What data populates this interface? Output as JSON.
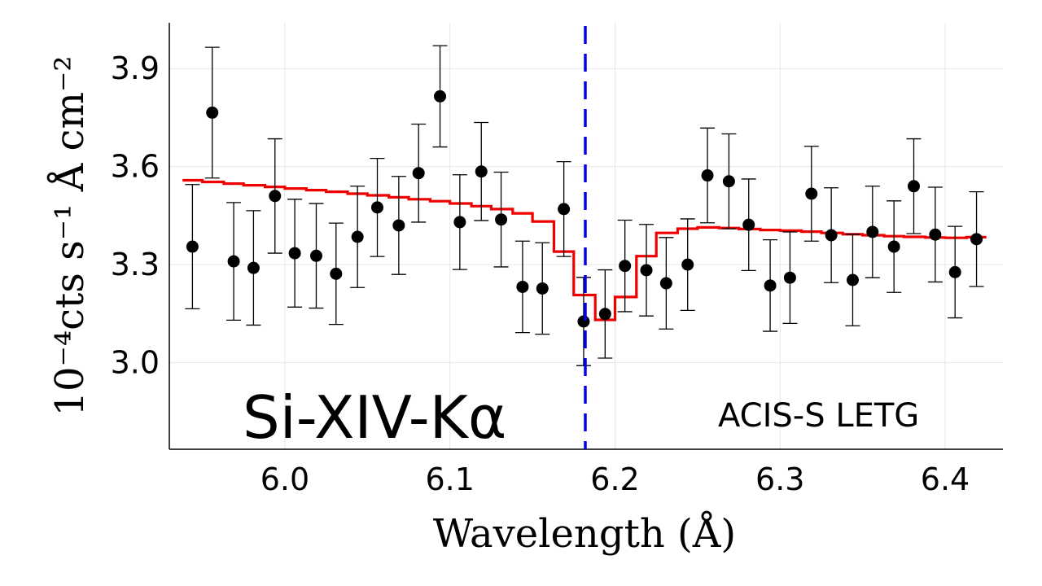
{
  "chart_data": {
    "type": "scatter",
    "xlabel": "Wavelength (Å)",
    "ylabel": "10⁻⁴cts s⁻¹ Å cm⁻²",
    "xlim": [
      5.93,
      6.435
    ],
    "ylim": [
      2.735,
      4.04
    ],
    "xticks": [
      6.0,
      6.1,
      6.2,
      6.3,
      6.4
    ],
    "xtick_labels": [
      "6.0",
      "6.1",
      "6.2",
      "6.3",
      "6.4"
    ],
    "yticks": [
      3.0,
      3.3,
      3.6,
      3.9
    ],
    "ytick_labels": [
      "3.0",
      "3.3",
      "3.6",
      "3.9"
    ],
    "grid": true,
    "annotations": {
      "line_label": "Si-XIV-Kα",
      "instrument": "ACIS-S LETG"
    },
    "reference_line": {
      "x": 6.182,
      "color": "#0000ee",
      "style": "dashed"
    },
    "data_points": {
      "color": "#000000",
      "x": [
        5.944,
        5.956,
        5.969,
        5.981,
        5.994,
        6.006,
        6.019,
        6.031,
        6.044,
        6.056,
        6.069,
        6.081,
        6.094,
        6.106,
        6.119,
        6.131,
        6.144,
        6.156,
        6.169,
        6.181,
        6.194,
        6.206,
        6.219,
        6.231,
        6.244,
        6.256,
        6.269,
        6.281,
        6.294,
        6.306,
        6.319,
        6.331,
        6.344,
        6.356,
        6.369,
        6.381,
        6.394,
        6.406,
        6.419
      ],
      "y": [
        3.355,
        3.765,
        3.31,
        3.29,
        3.51,
        3.335,
        3.327,
        3.272,
        3.385,
        3.475,
        3.42,
        3.58,
        3.815,
        3.43,
        3.585,
        3.438,
        3.232,
        3.227,
        3.47,
        3.126,
        3.149,
        3.296,
        3.283,
        3.243,
        3.3,
        3.573,
        3.555,
        3.422,
        3.236,
        3.26,
        3.517,
        3.39,
        3.253,
        3.4,
        3.355,
        3.54,
        3.392,
        3.277,
        3.378
      ],
      "err": [
        0.19,
        0.2,
        0.18,
        0.175,
        0.175,
        0.165,
        0.16,
        0.155,
        0.155,
        0.15,
        0.15,
        0.15,
        0.155,
        0.145,
        0.15,
        0.145,
        0.14,
        0.14,
        0.145,
        0.135,
        0.135,
        0.14,
        0.14,
        0.14,
        0.14,
        0.145,
        0.145,
        0.14,
        0.14,
        0.14,
        0.145,
        0.145,
        0.14,
        0.14,
        0.14,
        0.145,
        0.145,
        0.14,
        0.145
      ]
    },
    "model": {
      "color": "#ee0000",
      "type": "step",
      "edges": [
        5.938,
        5.95,
        5.963,
        5.975,
        5.988,
        6.0,
        6.013,
        6.025,
        6.038,
        6.05,
        6.063,
        6.075,
        6.088,
        6.1,
        6.113,
        6.125,
        6.138,
        6.15,
        6.163,
        6.175,
        6.188,
        6.2,
        6.213,
        6.225,
        6.238,
        6.25,
        6.263,
        6.275,
        6.288,
        6.3,
        6.313,
        6.325,
        6.338,
        6.35,
        6.363,
        6.375,
        6.388,
        6.4,
        6.413,
        6.425
      ],
      "values": [
        3.558,
        3.553,
        3.548,
        3.543,
        3.538,
        3.533,
        3.528,
        3.523,
        3.517,
        3.512,
        3.506,
        3.5,
        3.494,
        3.487,
        3.479,
        3.47,
        3.457,
        3.432,
        3.34,
        3.207,
        3.131,
        3.201,
        3.326,
        3.397,
        3.41,
        3.414,
        3.412,
        3.409,
        3.406,
        3.404,
        3.401,
        3.397,
        3.393,
        3.39,
        3.387,
        3.385,
        3.383,
        3.382,
        3.384
      ]
    }
  }
}
